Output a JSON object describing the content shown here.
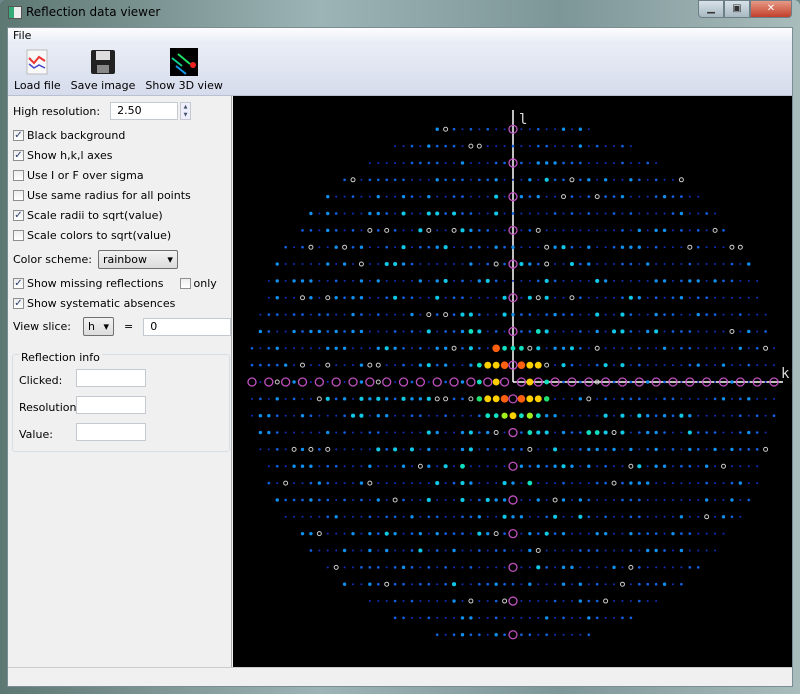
{
  "window": {
    "title": "Reflection data viewer",
    "minimize": "▁",
    "maximize": "▣",
    "close": "✕"
  },
  "menu": {
    "file": "File"
  },
  "toolbar": {
    "load": "Load file",
    "save": "Save image",
    "show3d": "Show 3D view"
  },
  "settings": {
    "high_res_label": "High resolution:",
    "high_res_value": "2.50",
    "checks": [
      {
        "label": "Black background",
        "checked": true
      },
      {
        "label": "Show h,k,l axes",
        "checked": true
      },
      {
        "label": "Use I or F over sigma",
        "checked": false
      },
      {
        "label": "Use same radius for all points",
        "checked": false
      },
      {
        "label": "Scale radii to sqrt(value)",
        "checked": true
      },
      {
        "label": "Scale colors to sqrt(value)",
        "checked": false
      }
    ],
    "color_scheme_label": "Color scheme:",
    "color_scheme": "rainbow",
    "show_missing": {
      "label": "Show missing reflections",
      "checked": true
    },
    "only": {
      "label": "only",
      "checked": false
    },
    "show_absences": {
      "label": "Show systematic absences",
      "checked": true
    },
    "view_slice_label": "View slice:",
    "slice_axis": "h",
    "equals": "=",
    "slice_value": "0"
  },
  "reflection_info": {
    "title": "Reflection info",
    "clicked_label": "Clicked:",
    "clicked": "",
    "resolution_label": "Resolution:",
    "resolution": "",
    "value_label": "Value:",
    "value": ""
  },
  "plot": {
    "background": "#000000",
    "axis_color": "#ffffff",
    "absence_color": "#c050c0",
    "missing_color": "#cccccc",
    "vertical_axis": "l",
    "horizontal_axis": "k"
  }
}
